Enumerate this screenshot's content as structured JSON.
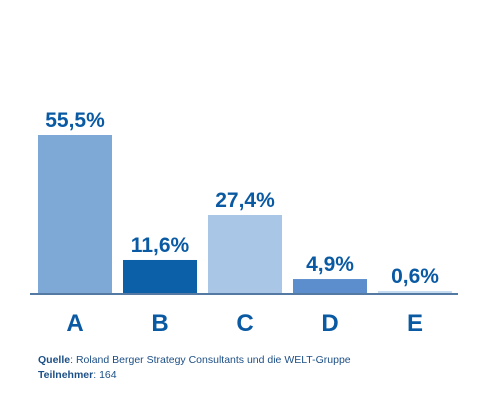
{
  "chart_data": {
    "type": "bar",
    "categories": [
      "A",
      "B",
      "C",
      "D",
      "E"
    ],
    "values": [
      55.5,
      11.6,
      27.4,
      4.9,
      0.6
    ],
    "value_labels": [
      "55,5%",
      "11,6%",
      "27,4%",
      "4,9%",
      "0,6%"
    ],
    "colors": [
      "#7ea8d6",
      "#0b60a8",
      "#a9c6e6",
      "#5c8dcc",
      "#c8dcf1"
    ],
    "ylim": [
      0,
      60
    ],
    "grid": false,
    "legend": "none"
  },
  "footer": {
    "source_label": "Quelle",
    "source_text": ": Roland Berger Strategy Consultants und die WELT-Gruppe",
    "participants_label": "Teilnehmer",
    "participants_text": ": 164"
  }
}
